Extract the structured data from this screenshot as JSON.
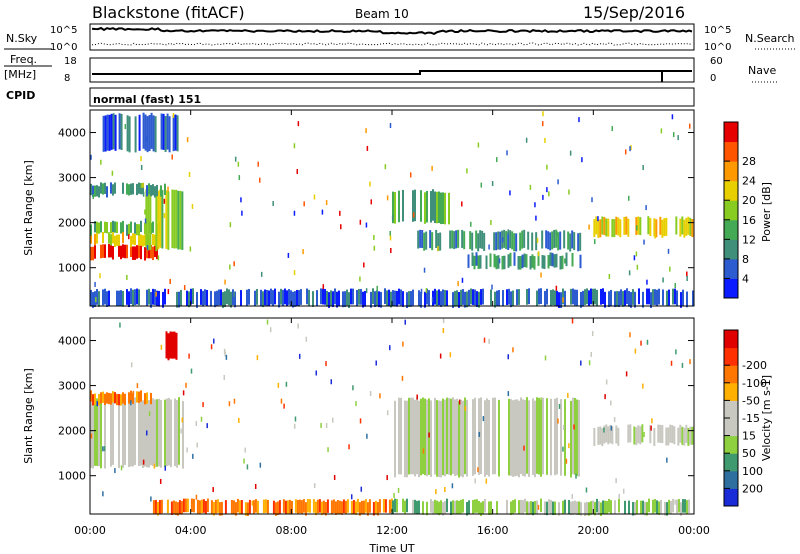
{
  "header": {
    "station": "Blackstone (fitACF)",
    "beam": "Beam 10",
    "date": "15/Sep/2016"
  },
  "noise_panel": {
    "left_label": "N.Sky",
    "right_label": "N.Search",
    "left_ticks": [
      "10^5",
      "10^0"
    ],
    "right_ticks": [
      "10^5",
      "10^0"
    ]
  },
  "freq_panel": {
    "left_label_line1": "Freq.",
    "left_label_line2": "[MHz]",
    "left_ticks": [
      "18",
      "8"
    ],
    "right_label": "Nave",
    "right_ticks": [
      "60",
      "0"
    ]
  },
  "cpid": {
    "label": "CPID",
    "value": "normal (fast) 151"
  },
  "chart_data": [
    {
      "type": "heatmap",
      "name": "power",
      "ylabel": "Slant Range [km]",
      "y_ticks": [
        "1000",
        "2000",
        "3000",
        "4000"
      ],
      "y_tick_values": [
        1000,
        2000,
        3000,
        4000
      ],
      "ylim": [
        150,
        4500
      ],
      "xlim": [
        0,
        24
      ],
      "colorbar_label": "Power [dB]",
      "colorbar_ticks": [
        "4",
        "8",
        "12",
        "16",
        "20",
        "24",
        "28"
      ],
      "colorbar_colors": [
        "#0a1bff",
        "#2d5bd0",
        "#3f8f7a",
        "#44aa55",
        "#88cc22",
        "#e8d000",
        "#ff9900",
        "#ff5500",
        "#e60000"
      ],
      "regions": [
        {
          "x0": 0.0,
          "x1": 2.8,
          "y0": 1200,
          "y1": 1500,
          "level": 8
        },
        {
          "x0": 0.0,
          "x1": 2.8,
          "y0": 1500,
          "y1": 1750,
          "level": 5
        },
        {
          "x0": 0.0,
          "x1": 2.8,
          "y0": 1750,
          "y1": 2000,
          "level": 3
        },
        {
          "x0": 2.2,
          "x1": 3.8,
          "y0": 1400,
          "y1": 2700,
          "level": 4
        },
        {
          "x0": 0.0,
          "x1": 3.0,
          "y0": 2600,
          "y1": 2850,
          "level": 2
        },
        {
          "x0": 0.5,
          "x1": 3.5,
          "y0": 3600,
          "y1": 4400,
          "level": 1
        },
        {
          "x0": 12.0,
          "x1": 14.5,
          "y0": 2000,
          "y1": 2700,
          "level": 3
        },
        {
          "x0": 13.0,
          "x1": 19.5,
          "y0": 1400,
          "y1": 1800,
          "level": 2
        },
        {
          "x0": 15.0,
          "x1": 19.5,
          "y0": 1000,
          "y1": 1300,
          "level": 2
        },
        {
          "x0": 20.0,
          "x1": 24.0,
          "y0": 1700,
          "y1": 2100,
          "level": 5
        },
        {
          "x0": 0.0,
          "x1": 24.0,
          "y0": 150,
          "y1": 500,
          "level": 1
        }
      ]
    },
    {
      "type": "heatmap",
      "name": "velocity",
      "ylabel": "Slant Range [km]",
      "y_ticks": [
        "1000",
        "2000",
        "3000",
        "4000"
      ],
      "y_tick_values": [
        1000,
        2000,
        3000,
        4000
      ],
      "ylim": [
        150,
        4500
      ],
      "xlim": [
        0,
        24
      ],
      "colorbar_label": "Velocity [m s-1]",
      "colorbar_ticks": [
        "200",
        "100",
        "50",
        "15",
        "-15",
        "-50",
        "-100",
        "-200"
      ],
      "colorbar_colors": [
        "#1a2bd8",
        "#2f6fa0",
        "#3f9a70",
        "#8fd040",
        "#c8c8c0",
        "#c8c8c0",
        "#ffb000",
        "#ff7700",
        "#ff3000",
        "#e00000"
      ],
      "regions": [
        {
          "x0": 0.0,
          "x1": 3.8,
          "y0": 1200,
          "y1": 2700,
          "level": 4
        },
        {
          "x0": 0.0,
          "x1": 2.5,
          "y0": 2600,
          "y1": 2850,
          "level": 7
        },
        {
          "x0": 3.0,
          "x1": 3.5,
          "y0": 3600,
          "y1": 4200,
          "level": 9
        },
        {
          "x0": 12.0,
          "x1": 19.5,
          "y0": 1000,
          "y1": 2700,
          "level": 4
        },
        {
          "x0": 20.0,
          "x1": 24.0,
          "y0": 1700,
          "y1": 2100,
          "level": 4
        },
        {
          "x0": 2.5,
          "x1": 12.0,
          "y0": 150,
          "y1": 450,
          "level": 7
        },
        {
          "x0": 12.0,
          "x1": 24.0,
          "y0": 150,
          "y1": 450,
          "level": 3
        }
      ]
    }
  ],
  "x_ticks": [
    "00:00",
    "04:00",
    "08:00",
    "12:00",
    "16:00",
    "20:00",
    "00:00"
  ],
  "x_tick_values": [
    0,
    4,
    8,
    12,
    16,
    20,
    24
  ],
  "xlabel": "Time UT"
}
